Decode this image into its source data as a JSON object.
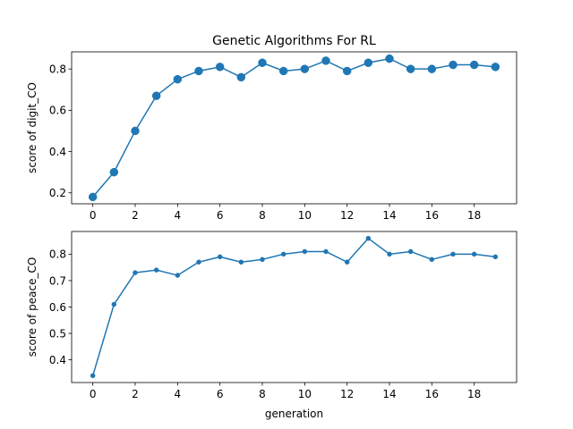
{
  "figure": {
    "title": "Genetic Algorithms For RL"
  },
  "chart_data": [
    {
      "type": "line",
      "title": "Genetic Algorithms For RL",
      "xlabel": "",
      "ylabel": "score of digit_CO",
      "x": [
        0,
        1,
        2,
        3,
        4,
        5,
        6,
        7,
        8,
        9,
        10,
        11,
        12,
        13,
        14,
        15,
        16,
        17,
        18,
        19
      ],
      "series": [
        {
          "values": [
            0.18,
            0.3,
            0.5,
            0.67,
            0.75,
            0.79,
            0.81,
            0.76,
            0.83,
            0.79,
            0.8,
            0.84,
            0.79,
            0.83,
            0.85,
            0.8,
            0.8,
            0.82,
            0.82,
            0.81
          ],
          "color": "#1f77b4",
          "marker": "circle-large"
        }
      ],
      "xlim": [
        -1.0,
        20.0
      ],
      "ylim": [
        0.147,
        0.883
      ],
      "xticks": [
        0,
        2,
        4,
        6,
        8,
        10,
        12,
        14,
        16,
        18
      ],
      "yticks": [
        0.2,
        0.4,
        0.6,
        0.8
      ],
      "ytick_labels": [
        "0.2",
        "0.4",
        "0.6",
        "0.8"
      ],
      "grid": false
    },
    {
      "type": "line",
      "title": "",
      "xlabel": "generation",
      "ylabel": "score of peace_CO",
      "x": [
        0,
        1,
        2,
        3,
        4,
        5,
        6,
        7,
        8,
        9,
        10,
        11,
        12,
        13,
        14,
        15,
        16,
        17,
        18,
        19
      ],
      "series": [
        {
          "values": [
            0.34,
            0.61,
            0.73,
            0.74,
            0.72,
            0.77,
            0.79,
            0.77,
            0.78,
            0.8,
            0.81,
            0.81,
            0.77,
            0.86,
            0.8,
            0.81,
            0.78,
            0.8,
            0.8,
            0.79
          ],
          "color": "#1f77b4",
          "marker": "circle-small"
        }
      ],
      "xlim": [
        -1.0,
        20.0
      ],
      "ylim": [
        0.314,
        0.886
      ],
      "xticks": [
        0,
        2,
        4,
        6,
        8,
        10,
        12,
        14,
        16,
        18
      ],
      "yticks": [
        0.4,
        0.5,
        0.6,
        0.7,
        0.8
      ],
      "ytick_labels": [
        "0.4",
        "0.5",
        "0.6",
        "0.7",
        "0.8"
      ],
      "grid": false
    }
  ]
}
